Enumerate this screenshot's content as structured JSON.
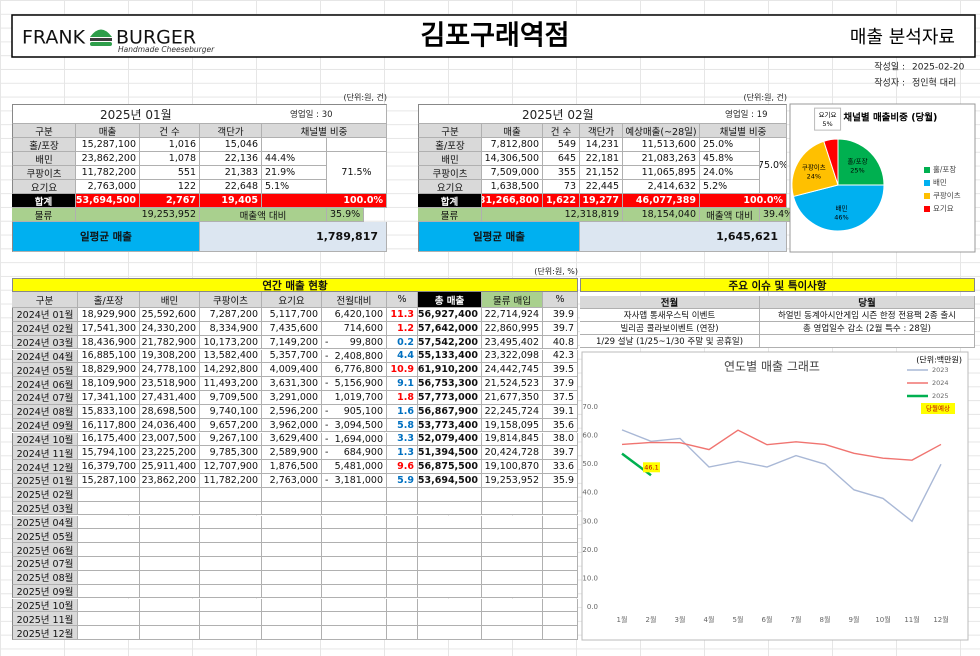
{
  "header": {
    "brand_left": "FRANK",
    "brand_right": "BURGER",
    "tagline": "Handmade Cheeseburger",
    "title": "김포구래역점",
    "subtitle": "매출 분석자료"
  },
  "meta": {
    "date_label": "작성일 :",
    "date": "2025-02-20",
    "author_label": "작성자 :",
    "author": "정인혁 대리"
  },
  "jan": {
    "unit": "(단위:원, 건)",
    "month": "2025년 01월",
    "days": "영업일 : 30",
    "headers": [
      "구분",
      "매출",
      "건 수",
      "객단가",
      "채널별 비중"
    ],
    "rows": [
      [
        "홀/포장",
        "15,287,100",
        "1,016",
        "15,046",
        "28.5%"
      ],
      [
        "배민",
        "23,862,200",
        "1,078",
        "22,136",
        "44.4%"
      ],
      [
        "쿠팡이츠",
        "11,782,200",
        "551",
        "21,383",
        "21.9%"
      ],
      [
        "요기요",
        "2,763,000",
        "122",
        "22,648",
        "5.1%"
      ]
    ],
    "merged_share": "71.5%",
    "total": [
      "합계",
      "53,694,500",
      "2,767",
      "19,405",
      "100.0%"
    ],
    "logistics": [
      "물류",
      "19,253,952",
      "매출액 대비",
      "35.9%"
    ],
    "daily": [
      "일평균 매출",
      "1,789,817"
    ]
  },
  "feb": {
    "unit": "(단위:원, 건)",
    "month": "2025년 02월",
    "days": "영업일 : 19",
    "headers": [
      "구분",
      "매출",
      "건 수",
      "객단가",
      "예상매출(~28일)",
      "채널별 비중"
    ],
    "rows": [
      [
        "홀/포장",
        "7,812,800",
        "549",
        "14,231",
        "11,513,600",
        "25.0%"
      ],
      [
        "배민",
        "14,306,500",
        "645",
        "22,181",
        "21,083,263",
        "45.8%"
      ],
      [
        "쿠팡이츠",
        "7,509,000",
        "355",
        "21,152",
        "11,065,895",
        "24.0%"
      ],
      [
        "요기요",
        "1,638,500",
        "73",
        "22,445",
        "2,414,632",
        "5.2%"
      ]
    ],
    "merged_share": "75.0%",
    "total": [
      "합계",
      "31,266,800",
      "1,622",
      "19,277",
      "46,077,389",
      "100.0%"
    ],
    "logistics": [
      "물류",
      "12,318,819",
      "18,154,040",
      "매출액 대비",
      "39.4%"
    ],
    "daily": [
      "일평균 매출",
      "1,645,621"
    ]
  },
  "annual": {
    "title": "연간 매출 현황",
    "unit": "(단위:원, %)",
    "headers": [
      "구분",
      "홀/포장",
      "배민",
      "쿠팡이츠",
      "요기요",
      "전월대비",
      "%",
      "총 매출",
      "물류 매입",
      "%"
    ],
    "rows": [
      [
        "2024년 01월",
        "18,929,900",
        "25,592,600",
        "7,287,200",
        "5,117,700",
        "6,420,100",
        "11.3",
        "56,927,400",
        "22,714,924",
        "39.9"
      ],
      [
        "2024년 02월",
        "17,541,300",
        "24,330,200",
        "8,334,900",
        "7,435,600",
        "714,600",
        "1.2",
        "57,642,000",
        "22,860,995",
        "39.7"
      ],
      [
        "2024년 03월",
        "18,436,900",
        "21,782,900",
        "10,173,200",
        "7,149,200",
        "- 99,800",
        "0.2",
        "57,542,200",
        "23,495,402",
        "40.8"
      ],
      [
        "2024년 04월",
        "16,885,100",
        "19,308,200",
        "13,582,400",
        "5,357,700",
        "- 2,408,800",
        "4.4",
        "55,133,400",
        "23,322,098",
        "42.3"
      ],
      [
        "2024년 05월",
        "18,829,900",
        "24,778,100",
        "14,292,800",
        "4,009,400",
        "6,776,800",
        "10.9",
        "61,910,200",
        "24,442,745",
        "39.5"
      ],
      [
        "2024년 06월",
        "18,109,900",
        "23,518,900",
        "11,493,200",
        "3,631,300",
        "- 5,156,900",
        "9.1",
        "56,753,300",
        "21,524,523",
        "37.9"
      ],
      [
        "2024년 07월",
        "17,341,100",
        "27,431,400",
        "9,709,500",
        "3,291,000",
        "1,019,700",
        "1.8",
        "57,773,000",
        "21,677,350",
        "37.5"
      ],
      [
        "2024년 08월",
        "15,833,100",
        "28,698,500",
        "9,740,100",
        "2,596,200",
        "- 905,100",
        "1.6",
        "56,867,900",
        "22,245,724",
        "39.1"
      ],
      [
        "2024년 09월",
        "16,117,800",
        "24,036,400",
        "9,657,200",
        "3,962,000",
        "- 3,094,500",
        "5.8",
        "53,773,400",
        "19,158,095",
        "35.6"
      ],
      [
        "2024년 10월",
        "16,175,400",
        "23,007,500",
        "9,267,100",
        "3,629,400",
        "- 1,694,000",
        "3.3",
        "52,079,400",
        "19,814,845",
        "38.0"
      ],
      [
        "2024년 11월",
        "15,794,100",
        "23,225,200",
        "9,785,300",
        "2,589,900",
        "- 684,900",
        "1.3",
        "51,394,500",
        "20,424,728",
        "39.7"
      ],
      [
        "2024년 12월",
        "16,379,700",
        "25,911,400",
        "12,707,900",
        "1,876,500",
        "5,481,000",
        "9.6",
        "56,875,500",
        "19,100,870",
        "33.6"
      ],
      [
        "2025년 01월",
        "15,287,100",
        "23,862,200",
        "11,782,200",
        "2,763,000",
        "- 3,181,000",
        "5.9",
        "53,694,500",
        "19,253,952",
        "35.9"
      ],
      [
        "2025년 02월"
      ],
      [
        "2025년 03월"
      ],
      [
        "2025년 04월"
      ],
      [
        "2025년 05월"
      ],
      [
        "2025년 06월"
      ],
      [
        "2025년 07월"
      ],
      [
        "2025년 08월"
      ],
      [
        "2025년 09월"
      ],
      [
        "2025년 10월"
      ],
      [
        "2025년 11월"
      ],
      [
        "2025년 12월"
      ]
    ]
  },
  "issues": {
    "title": "주요 이슈 및 특이사항",
    "headers": [
      "전월",
      "당월"
    ],
    "rows": [
      [
        "자사앱 통새우스틱 이벤트",
        "하얼빈 동계아시안게임 시즌 한정 전용팩 2종 출시"
      ],
      [
        "빌리곰 콜라보이벤트 (연장)",
        "총 영업일수 감소 (2월 특수 : 28일)"
      ],
      [
        "1/29 설날 (1/25~1/30 주말 및 공휴일)"
      ]
    ]
  },
  "chart_data": [
    {
      "type": "pie",
      "title": "주문 채널별 매출비중 (당월)",
      "categories": [
        "홀/포장",
        "배민",
        "쿠팡이츠",
        "요기요"
      ],
      "values": [
        25,
        46,
        24,
        5
      ],
      "value_labels": [
        "25%",
        "46%",
        "24%",
        "5%"
      ],
      "colors": [
        "#00b050",
        "#00b0f0",
        "#ffc000",
        "#ff0000"
      ],
      "legend": "right"
    },
    {
      "type": "line",
      "title": "연도별 매출 그래프",
      "unit": "(단위:백만원)",
      "categories": [
        "1월",
        "2월",
        "3월",
        "4월",
        "5월",
        "6월",
        "7월",
        "8월",
        "9월",
        "10월",
        "11월",
        "12월"
      ],
      "series": [
        {
          "name": "2023",
          "color": "#a9b8d6",
          "values": [
            62,
            58,
            59,
            49,
            51,
            49,
            53,
            50,
            41,
            38,
            30,
            50
          ]
        },
        {
          "name": "2024",
          "color": "#f07470",
          "values": [
            56.9,
            57.6,
            57.5,
            55.1,
            61.9,
            56.8,
            57.8,
            56.9,
            53.8,
            52.1,
            51.4,
            56.9
          ]
        },
        {
          "name": "2025",
          "color": "#00b050",
          "values": [
            53.7,
            46.1,
            null,
            null,
            null,
            null,
            null,
            null,
            null,
            null,
            null,
            null
          ],
          "value_labels": [
            null,
            "46.1",
            null,
            null,
            null,
            null,
            null,
            null,
            null,
            null,
            null,
            null
          ]
        }
      ],
      "ylim": [
        0,
        70
      ],
      "yticks": [
        {
          "value": 0,
          "label": "0.0"
        },
        {
          "value": 10,
          "label": "10.0"
        },
        {
          "value": 20,
          "label": "20.0"
        },
        {
          "value": 30,
          "label": "30.0"
        },
        {
          "value": 40,
          "label": "40.0"
        },
        {
          "value": 50,
          "label": "50.0"
        },
        {
          "value": 60,
          "label": "60.0"
        },
        {
          "value": 70,
          "label": "70.0"
        }
      ],
      "grid": false,
      "legend": "top-right",
      "annotation": "당월예상"
    }
  ]
}
